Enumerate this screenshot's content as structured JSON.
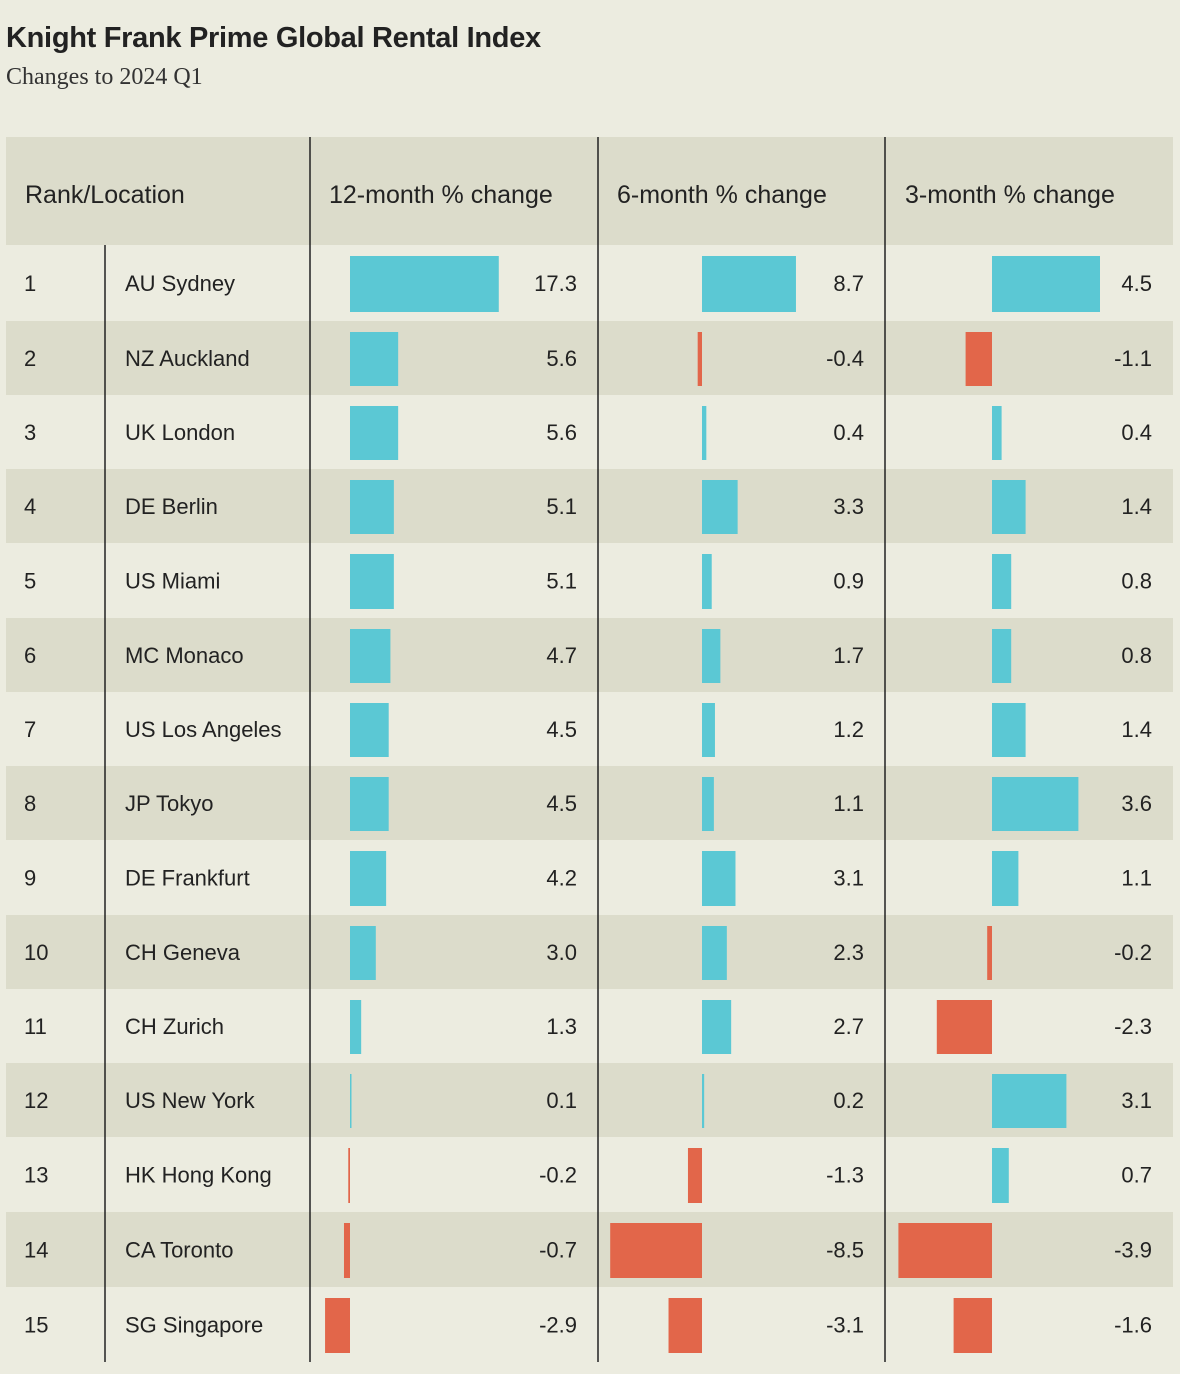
{
  "header": {
    "title": "Knight Frank Prime Global Rental Index",
    "subtitle": "Changes to 2024 Q1"
  },
  "colors": {
    "background": "#ecece0",
    "row_alt": "#dcdccb",
    "header_bg": "#dcdccb",
    "positive": "#5bc8d4",
    "negative": "#e2664a",
    "rule": "#222222"
  },
  "chart_data": {
    "type": "table",
    "columns": [
      "Rank/Location",
      "12-month % change",
      "6-month % change",
      "3-month % change"
    ],
    "series": [
      {
        "name": "12-month % change",
        "values": [
          17.3,
          5.6,
          5.6,
          5.1,
          5.1,
          4.7,
          4.5,
          4.5,
          4.2,
          3.0,
          1.3,
          0.1,
          -0.2,
          -0.7,
          -2.9
        ]
      },
      {
        "name": "6-month % change",
        "values": [
          8.7,
          -0.4,
          0.4,
          3.3,
          0.9,
          1.7,
          1.2,
          1.1,
          3.1,
          2.3,
          2.7,
          0.2,
          -1.3,
          -8.5,
          -3.1
        ]
      },
      {
        "name": "3-month % change",
        "values": [
          4.5,
          -1.1,
          0.4,
          1.4,
          0.8,
          0.8,
          1.4,
          3.6,
          1.1,
          -0.2,
          -2.3,
          3.1,
          0.7,
          -3.9,
          -1.6
        ]
      }
    ],
    "rows": [
      {
        "rank": "1",
        "location": "AU Sydney",
        "labels": [
          "17.3",
          "8.7",
          "4.5"
        ]
      },
      {
        "rank": "2",
        "location": "NZ Auckland",
        "labels": [
          "5.6",
          "-0.4",
          "-1.1"
        ]
      },
      {
        "rank": "3",
        "location": "UK London",
        "labels": [
          "5.6",
          "0.4",
          "0.4"
        ]
      },
      {
        "rank": "4",
        "location": "DE Berlin",
        "labels": [
          "5.1",
          "3.3",
          "1.4"
        ]
      },
      {
        "rank": "5",
        "location": "US Miami",
        "labels": [
          "5.1",
          "0.9",
          "0.8"
        ]
      },
      {
        "rank": "6",
        "location": "MC Monaco",
        "labels": [
          "4.7",
          "1.7",
          "0.8"
        ]
      },
      {
        "rank": "7",
        "location": "US Los Angeles",
        "labels": [
          "4.5",
          "1.2",
          "1.4"
        ]
      },
      {
        "rank": "8",
        "location": "JP Tokyo",
        "labels": [
          "4.5",
          "1.1",
          "3.6"
        ]
      },
      {
        "rank": "9",
        "location": "DE Frankfurt",
        "labels": [
          "4.2",
          "3.1",
          "1.1"
        ]
      },
      {
        "rank": "10",
        "location": "CH Geneva",
        "labels": [
          "3.0",
          "2.3",
          "-0.2"
        ]
      },
      {
        "rank": "11",
        "location": "CH Zurich",
        "labels": [
          "1.3",
          "2.7",
          "-2.3"
        ]
      },
      {
        "rank": "12",
        "location": "US New York",
        "labels": [
          "0.1",
          "0.2",
          "3.1"
        ]
      },
      {
        "rank": "13",
        "location": "HK Hong Kong",
        "labels": [
          "-0.2",
          "-1.3",
          "0.7"
        ]
      },
      {
        "rank": "14",
        "location": "CA Toronto",
        "labels": [
          "-0.7",
          "-8.5",
          "-3.9"
        ]
      },
      {
        "rank": "15",
        "location": "SG Singapore",
        "labels": [
          "-2.9",
          "-3.1",
          "-1.6"
        ]
      }
    ]
  }
}
